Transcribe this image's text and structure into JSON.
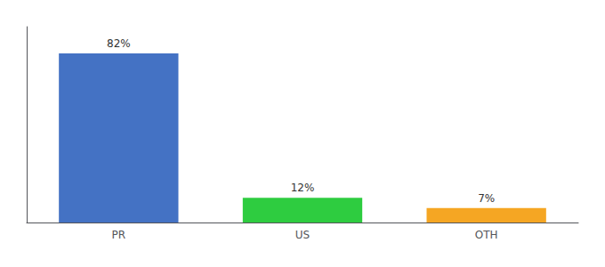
{
  "chart_data": {
    "type": "bar",
    "categories": [
      "PR",
      "US",
      "OTH"
    ],
    "values": [
      82,
      12,
      7
    ],
    "value_labels": [
      "82%",
      "12%",
      "7%"
    ],
    "colors": [
      "#4472c4",
      "#2ecc40",
      "#f5a623"
    ],
    "ylim": [
      0,
      95
    ],
    "grid": false,
    "tick_labels": "x",
    "data_labels": true
  }
}
